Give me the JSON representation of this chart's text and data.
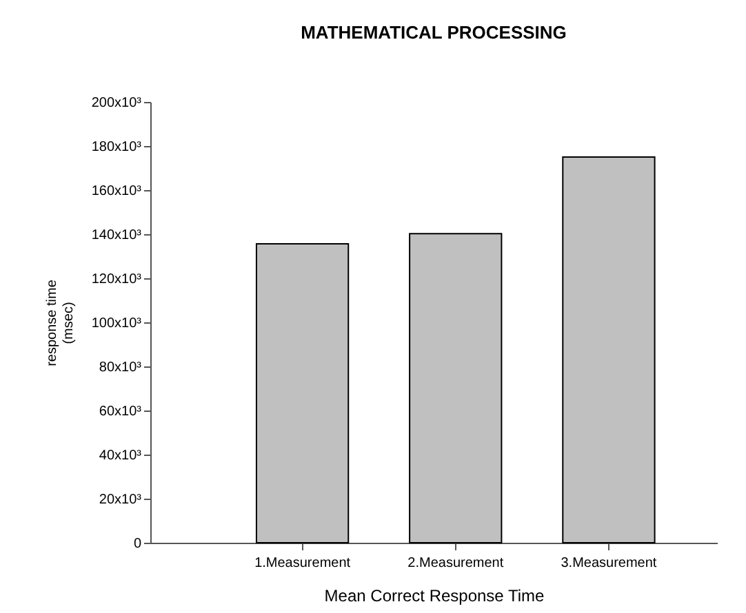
{
  "chart_data": {
    "type": "bar",
    "title": "MATHEMATICAL PROCESSING",
    "xlabel": "Mean Correct Response Time",
    "ylabel": [
      "response time",
      "(msec)"
    ],
    "categories": [
      "1.Measurement",
      "2.Measurement",
      "3.Measurement"
    ],
    "values": [
      135600,
      140200,
      175000
    ],
    "color": "#c0c0c0",
    "ylim": [
      0,
      200000
    ],
    "yticks": [
      0,
      {
        "value": 20000,
        "label": "20x10³"
      },
      {
        "value": 40000,
        "label": "40x10³"
      },
      {
        "value": 60000,
        "label": "60x10³"
      },
      {
        "value": 80000,
        "label": "80x10³"
      },
      {
        "value": 100000,
        "label": "100x10³"
      },
      {
        "value": 120000,
        "label": "120x10³"
      },
      {
        "value": 140000,
        "label": "140x10³"
      },
      {
        "value": 160000,
        "label": "160x10³"
      },
      {
        "value": 180000,
        "label": "180x10³"
      },
      {
        "value": 200000,
        "label": "200x10³"
      }
    ],
    "grid": false
  }
}
